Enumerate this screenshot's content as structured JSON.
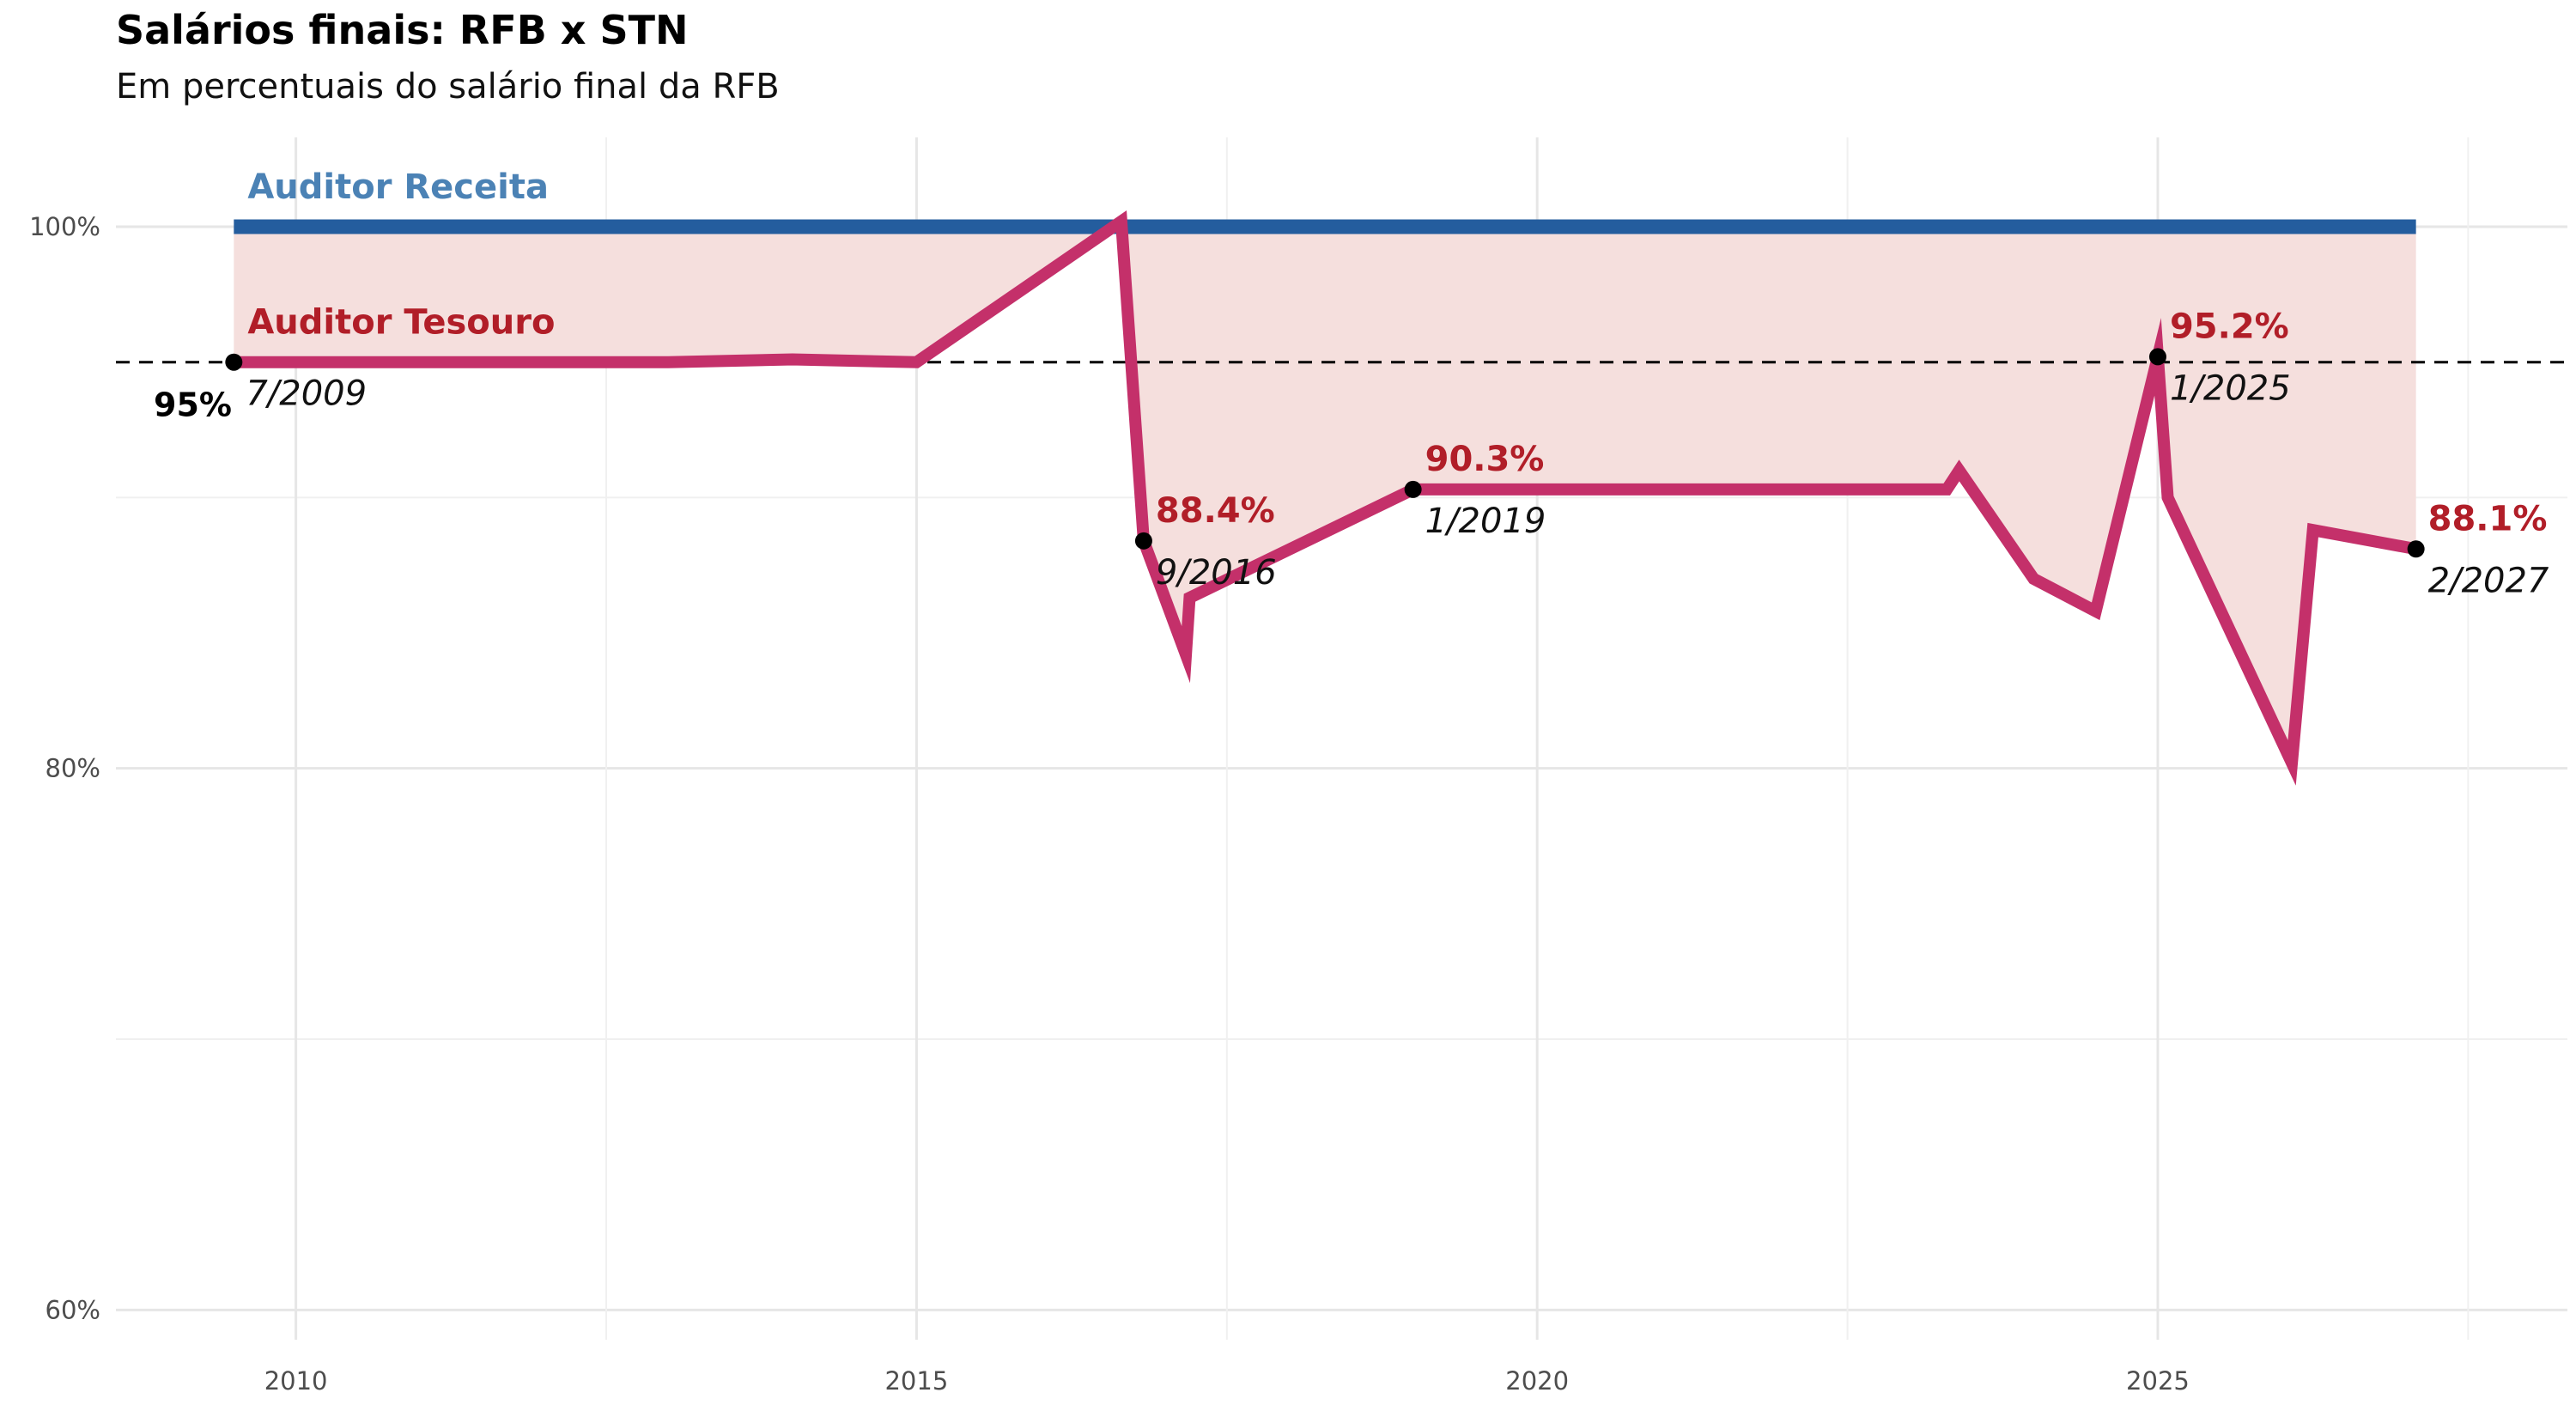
{
  "chart_data": {
    "type": "line",
    "title": "Salários finais: RFB x STN",
    "subtitle": "Em percentuais do salário final da RFB",
    "xlabel": "",
    "ylabel": "",
    "xlim": [
      2008.55,
      2028.3
    ],
    "ylim": [
      58.9,
      103.3
    ],
    "x_ticks": [
      2010,
      2015,
      2020,
      2025
    ],
    "x_tick_labels": [
      "2010",
      "2015",
      "2020",
      "2025"
    ],
    "y_ticks": [
      60,
      80,
      100
    ],
    "y_tick_labels": [
      "60%",
      "80%",
      "100%"
    ],
    "y_minor_gridlines": [
      70,
      90
    ],
    "grid": true,
    "series": [
      {
        "name": "Auditor Receita",
        "color": "#245d9e",
        "label_color": "#4b82b5",
        "x": [
          2009.5,
          2027.08
        ],
        "y": [
          100.0,
          100.0
        ]
      },
      {
        "name": "Auditor Tesouro",
        "color": "#c4306a",
        "label_color": "#b11e28",
        "x": [
          2009.5,
          2013.0,
          2014.0,
          2015.0,
          2016.65,
          2016.83,
          2017.17,
          2017.2,
          2019.0,
          2023.3,
          2023.4,
          2024.0,
          2024.5,
          2025.0,
          2025.08,
          2026.08,
          2026.25,
          2027.08
        ],
        "y": [
          95.0,
          95.0,
          95.1,
          95.0,
          100.2,
          88.4,
          84.2,
          86.3,
          90.3,
          90.3,
          91.0,
          87.0,
          85.8,
          95.2,
          90.0,
          80.2,
          88.8,
          88.1
        ]
      }
    ],
    "fill_between": {
      "color": "#f5dfdd"
    },
    "reference_line": {
      "y": 95,
      "style": "dashed",
      "label": "95%"
    },
    "annotations": [
      {
        "x": 2009.5,
        "y": 95.0,
        "value": "",
        "date": "7/2009"
      },
      {
        "x": 2016.83,
        "y": 88.4,
        "value": "88.4%",
        "date": "9/2016"
      },
      {
        "x": 2019.0,
        "y": 90.3,
        "value": "90.3%",
        "date": "1/2019"
      },
      {
        "x": 2025.0,
        "y": 95.2,
        "value": "95.2%",
        "date": "1/2025"
      },
      {
        "x": 2027.08,
        "y": 88.1,
        "value": "88.1%",
        "date": "2/2027"
      }
    ]
  }
}
